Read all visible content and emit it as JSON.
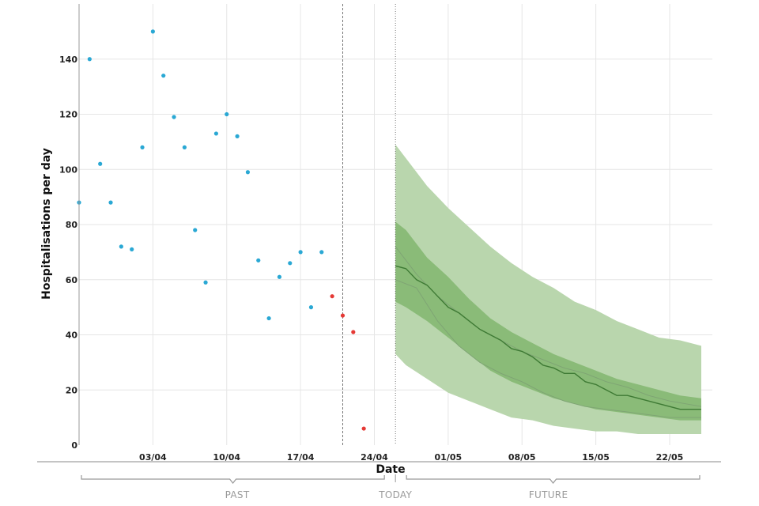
{
  "chart_data": {
    "type": "scatter",
    "ylabel": "Hospitalisations per day",
    "xlabel": "Date",
    "ylim": [
      0,
      160
    ],
    "xlim": [
      "2020-03-27",
      "2020-05-25"
    ],
    "yticks": [
      0,
      20,
      40,
      60,
      80,
      100,
      120,
      140
    ],
    "xticks": [
      {
        "date": "2020-04-03",
        "label": "03/04"
      },
      {
        "date": "2020-04-10",
        "label": "10/04"
      },
      {
        "date": "2020-04-17",
        "label": "17/04"
      },
      {
        "date": "2020-04-24",
        "label": "24/04"
      },
      {
        "date": "2020-05-01",
        "label": "01/05"
      },
      {
        "date": "2020-05-08",
        "label": "08/05"
      },
      {
        "date": "2020-05-15",
        "label": "15/05"
      },
      {
        "date": "2020-05-22",
        "label": "22/05"
      }
    ],
    "grid": true,
    "markers": [
      {
        "date": "2020-04-21",
        "style": "dashed"
      },
      {
        "date": "2020-04-26",
        "style": "dotted"
      }
    ],
    "periods": [
      {
        "label": "PAST",
        "start": "2020-03-27",
        "end": "2020-04-26"
      },
      {
        "label": "TODAY",
        "start": "2020-04-26",
        "end": "2020-04-26"
      },
      {
        "label": "FUTURE",
        "start": "2020-04-26",
        "end": "2020-05-25"
      }
    ],
    "series": [
      {
        "kind": "points",
        "color": "#2aa8d4",
        "points": [
          [
            "2020-03-27",
            88
          ],
          [
            "2020-03-28",
            140
          ],
          [
            "2020-03-29",
            102
          ],
          [
            "2020-03-30",
            88
          ],
          [
            "2020-03-31",
            72
          ],
          [
            "2020-04-01",
            71
          ],
          [
            "2020-04-02",
            108
          ],
          [
            "2020-04-03",
            150
          ],
          [
            "2020-04-04",
            134
          ],
          [
            "2020-04-05",
            119
          ],
          [
            "2020-04-06",
            108
          ],
          [
            "2020-04-07",
            78
          ],
          [
            "2020-04-08",
            59
          ],
          [
            "2020-04-09",
            113
          ],
          [
            "2020-04-10",
            120
          ],
          [
            "2020-04-11",
            112
          ],
          [
            "2020-04-12",
            99
          ],
          [
            "2020-04-13",
            67
          ],
          [
            "2020-04-14",
            46
          ],
          [
            "2020-04-15",
            61
          ],
          [
            "2020-04-16",
            66
          ],
          [
            "2020-04-17",
            70
          ],
          [
            "2020-04-18",
            50
          ],
          [
            "2020-04-19",
            70
          ]
        ]
      },
      {
        "kind": "points",
        "color": "#e53935",
        "points": [
          [
            "2020-04-20",
            54
          ],
          [
            "2020-04-21",
            47
          ],
          [
            "2020-04-22",
            41
          ],
          [
            "2020-04-23",
            6
          ]
        ]
      },
      {
        "kind": "band",
        "color": "#b9d6ad",
        "points": [
          [
            "2020-04-26",
            33,
            109
          ],
          [
            "2020-04-27",
            29,
            104
          ],
          [
            "2020-04-29",
            24,
            94
          ],
          [
            "2020-05-01",
            19,
            86
          ],
          [
            "2020-05-03",
            16,
            79
          ],
          [
            "2020-05-05",
            13,
            72
          ],
          [
            "2020-05-07",
            10,
            66
          ],
          [
            "2020-05-09",
            9,
            61
          ],
          [
            "2020-05-11",
            7,
            57
          ],
          [
            "2020-05-13",
            6,
            52
          ],
          [
            "2020-05-15",
            5,
            49
          ],
          [
            "2020-05-17",
            5,
            45
          ],
          [
            "2020-05-19",
            4,
            42
          ],
          [
            "2020-05-21",
            4,
            39
          ],
          [
            "2020-05-23",
            4,
            38
          ],
          [
            "2020-05-25",
            4,
            36
          ]
        ]
      },
      {
        "kind": "band",
        "color": "#8abb78",
        "points": [
          [
            "2020-04-26",
            52,
            81
          ],
          [
            "2020-04-27",
            50,
            78
          ],
          [
            "2020-04-29",
            45,
            68
          ],
          [
            "2020-05-01",
            39,
            61
          ],
          [
            "2020-05-03",
            33,
            53
          ],
          [
            "2020-05-05",
            27,
            46
          ],
          [
            "2020-05-07",
            23,
            41
          ],
          [
            "2020-05-09",
            20,
            37
          ],
          [
            "2020-05-11",
            17,
            33
          ],
          [
            "2020-05-13",
            15,
            30
          ],
          [
            "2020-05-15",
            13,
            27
          ],
          [
            "2020-05-17",
            12,
            24
          ],
          [
            "2020-05-19",
            11,
            22
          ],
          [
            "2020-05-21",
            10,
            20
          ],
          [
            "2020-05-23",
            9,
            18
          ],
          [
            "2020-05-25",
            9,
            17
          ]
        ]
      },
      {
        "kind": "line",
        "color": "#7ea374",
        "points": [
          [
            "2020-04-26",
            72
          ],
          [
            "2020-04-28",
            62
          ],
          [
            "2020-04-30",
            54
          ],
          [
            "2020-05-02",
            48
          ],
          [
            "2020-05-04",
            42
          ],
          [
            "2020-05-06",
            38
          ],
          [
            "2020-05-08",
            34
          ],
          [
            "2020-05-10",
            31
          ],
          [
            "2020-05-12",
            28
          ],
          [
            "2020-05-14",
            26
          ],
          [
            "2020-05-16",
            23
          ],
          [
            "2020-05-18",
            21
          ],
          [
            "2020-05-20",
            18
          ],
          [
            "2020-05-22",
            16
          ],
          [
            "2020-05-25",
            14
          ]
        ]
      },
      {
        "kind": "line",
        "color": "#7ea374",
        "points": [
          [
            "2020-04-26",
            60
          ],
          [
            "2020-04-28",
            57
          ],
          [
            "2020-04-30",
            45
          ],
          [
            "2020-05-02",
            36
          ],
          [
            "2020-05-04",
            30
          ],
          [
            "2020-05-06",
            26
          ],
          [
            "2020-05-08",
            23
          ],
          [
            "2020-05-10",
            19
          ],
          [
            "2020-05-12",
            16
          ],
          [
            "2020-05-14",
            14
          ],
          [
            "2020-05-16",
            13
          ],
          [
            "2020-05-18",
            12
          ],
          [
            "2020-05-20",
            11
          ],
          [
            "2020-05-22",
            10
          ],
          [
            "2020-05-25",
            10
          ]
        ]
      },
      {
        "kind": "line",
        "color": "#3e7a34",
        "points": [
          [
            "2020-04-26",
            65
          ],
          [
            "2020-04-27",
            64
          ],
          [
            "2020-04-28",
            60
          ],
          [
            "2020-04-29",
            58
          ],
          [
            "2020-04-30",
            54
          ],
          [
            "2020-05-01",
            50
          ],
          [
            "2020-05-02",
            48
          ],
          [
            "2020-05-03",
            45
          ],
          [
            "2020-05-04",
            42
          ],
          [
            "2020-05-05",
            40
          ],
          [
            "2020-05-06",
            38
          ],
          [
            "2020-05-07",
            35
          ],
          [
            "2020-05-08",
            34
          ],
          [
            "2020-05-09",
            32
          ],
          [
            "2020-05-10",
            29
          ],
          [
            "2020-05-11",
            28
          ],
          [
            "2020-05-12",
            26
          ],
          [
            "2020-05-13",
            26
          ],
          [
            "2020-05-14",
            23
          ],
          [
            "2020-05-15",
            22
          ],
          [
            "2020-05-16",
            20
          ],
          [
            "2020-05-17",
            18
          ],
          [
            "2020-05-18",
            18
          ],
          [
            "2020-05-19",
            17
          ],
          [
            "2020-05-20",
            16
          ],
          [
            "2020-05-21",
            15
          ],
          [
            "2020-05-22",
            14
          ],
          [
            "2020-05-23",
            13
          ],
          [
            "2020-05-24",
            13
          ],
          [
            "2020-05-25",
            13
          ]
        ]
      }
    ]
  }
}
